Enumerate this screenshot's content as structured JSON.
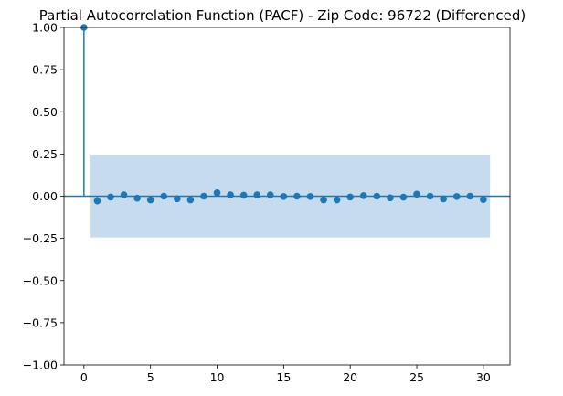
{
  "chart_data": {
    "type": "scatter",
    "title": "Partial Autocorrelation Function (PACF) - Zip Code: 96722 (Differenced)",
    "xlabel": "",
    "ylabel": "",
    "xlim": [
      -1.5,
      32
    ],
    "ylim": [
      -1.0,
      1.0
    ],
    "x_ticks": [
      0,
      5,
      10,
      15,
      20,
      25,
      30
    ],
    "y_ticks": [
      1.0,
      0.75,
      0.5,
      0.25,
      0.0,
      -0.25,
      -0.5,
      -0.75,
      -1.0
    ],
    "x_tick_labels": [
      "0",
      "5",
      "10",
      "15",
      "20",
      "25",
      "30"
    ],
    "y_tick_labels": [
      "1.00",
      "0.75",
      "0.50",
      "0.25",
      "0.00",
      "−0.25",
      "−0.50",
      "−0.75",
      "−1.00"
    ],
    "confidence_band": {
      "lower": -0.245,
      "upper": 0.245,
      "x_start": 0.5,
      "x_end": 30.5,
      "color": "#c6dcee"
    },
    "series": [
      {
        "color": "#1f77b4",
        "x": [
          0,
          1,
          2,
          3,
          4,
          5,
          6,
          7,
          8,
          9,
          10,
          11,
          12,
          13,
          14,
          15,
          16,
          17,
          18,
          19,
          20,
          21,
          22,
          23,
          24,
          25,
          26,
          27,
          28,
          29,
          30
        ],
        "values": [
          1.0,
          -0.028,
          -0.005,
          0.008,
          -0.012,
          -0.022,
          0.0,
          -0.015,
          -0.022,
          0.0,
          0.02,
          0.008,
          0.006,
          0.008,
          0.008,
          -0.002,
          0.0,
          -0.002,
          -0.022,
          -0.022,
          -0.005,
          0.003,
          0.0,
          -0.01,
          -0.006,
          0.012,
          0.0,
          -0.016,
          -0.002,
          0.0,
          -0.02
        ]
      }
    ],
    "grid": false,
    "legend": "none"
  }
}
